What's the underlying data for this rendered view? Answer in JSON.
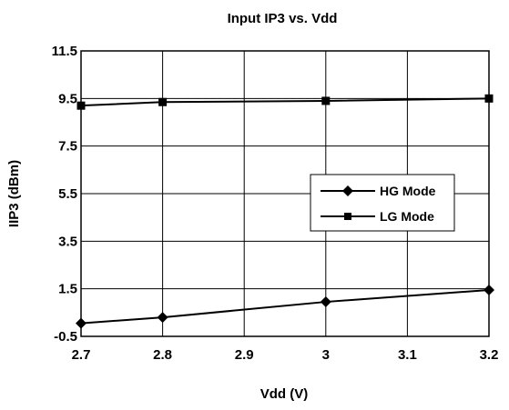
{
  "chart_data": {
    "type": "line",
    "title": "Input IP3 vs. Vdd",
    "xlabel": "Vdd (V)",
    "ylabel": "IIP3 (dBm)",
    "xlim": [
      2.7,
      3.2
    ],
    "ylim": [
      -0.5,
      11.5
    ],
    "xticks": [
      2.7,
      2.8,
      2.9,
      3.0,
      3.1,
      3.2
    ],
    "xtick_labels": [
      "2.7",
      "2.8",
      "2.9",
      "3",
      "3.1",
      "3.2"
    ],
    "yticks": [
      -0.5,
      1.5,
      3.5,
      5.5,
      7.5,
      9.5,
      11.5
    ],
    "ytick_labels": [
      "-0.5",
      "1.5",
      "3.5",
      "5.5",
      "7.5",
      "9.5",
      "11.5"
    ],
    "grid": true,
    "legend_position": "center-right",
    "series": [
      {
        "name": "HG Mode",
        "marker": "diamond",
        "color": "#000000",
        "x": [
          2.7,
          2.8,
          3.0,
          3.2
        ],
        "y": [
          0.05,
          0.3,
          0.95,
          1.45
        ]
      },
      {
        "name": "LG Mode",
        "marker": "square",
        "color": "#000000",
        "x": [
          2.7,
          2.8,
          3.0,
          3.2
        ],
        "y": [
          9.2,
          9.35,
          9.4,
          9.5
        ]
      }
    ]
  }
}
